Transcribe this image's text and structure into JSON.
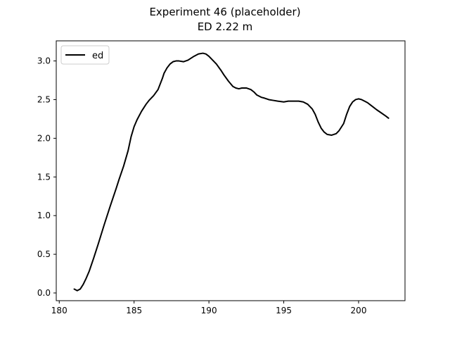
{
  "chart_data": {
    "type": "line",
    "title": "Experiment 46 (placeholder)",
    "subtitle": "ED 2.22 m",
    "xlabel": "",
    "ylabel": "",
    "xlim": [
      179.8,
      203.1
    ],
    "ylim": [
      -0.1,
      3.26
    ],
    "x_ticks": [
      180,
      185,
      190,
      195,
      200
    ],
    "y_ticks": [
      0.0,
      0.5,
      1.0,
      1.5,
      2.0,
      2.5,
      3.0
    ],
    "x_tick_labels": [
      "180",
      "185",
      "190",
      "195",
      "200"
    ],
    "y_tick_labels": [
      "0.0",
      "0.5",
      "1.0",
      "1.5",
      "2.0",
      "2.5",
      "3.0"
    ],
    "grid": false,
    "legend_position": "top-left",
    "series": [
      {
        "name": "ed",
        "color": "#000000",
        "x": [
          181.0,
          181.2,
          181.4,
          181.6,
          181.8,
          182.0,
          182.3,
          182.6,
          183.0,
          183.4,
          183.8,
          184.0,
          184.3,
          184.6,
          184.8,
          185.0,
          185.2,
          185.5,
          185.8,
          186.0,
          186.3,
          186.6,
          186.9,
          187.0,
          187.2,
          187.4,
          187.6,
          187.8,
          188.0,
          188.3,
          188.6,
          189.0,
          189.3,
          189.6,
          189.8,
          190.0,
          190.2,
          190.5,
          190.8,
          191.0,
          191.3,
          191.6,
          191.8,
          192.0,
          192.2,
          192.5,
          192.8,
          193.0,
          193.2,
          193.5,
          193.7,
          194.0,
          194.3,
          194.6,
          195.0,
          195.3,
          195.6,
          196.0,
          196.3,
          196.6,
          196.9,
          197.1,
          197.3,
          197.5,
          197.7,
          197.9,
          198.2,
          198.5,
          198.7,
          199.0,
          199.2,
          199.4,
          199.6,
          199.8,
          200.0,
          200.2,
          200.4,
          200.6,
          200.8,
          201.0,
          201.2,
          201.5,
          201.8,
          202.0
        ],
        "y": [
          0.05,
          0.03,
          0.05,
          0.11,
          0.19,
          0.28,
          0.45,
          0.63,
          0.88,
          1.12,
          1.35,
          1.47,
          1.64,
          1.84,
          2.02,
          2.15,
          2.24,
          2.35,
          2.44,
          2.49,
          2.55,
          2.63,
          2.78,
          2.84,
          2.91,
          2.96,
          2.99,
          3.0,
          3.0,
          2.99,
          3.01,
          3.06,
          3.09,
          3.1,
          3.09,
          3.06,
          3.02,
          2.96,
          2.88,
          2.82,
          2.74,
          2.67,
          2.65,
          2.64,
          2.65,
          2.65,
          2.63,
          2.6,
          2.56,
          2.53,
          2.52,
          2.5,
          2.49,
          2.48,
          2.47,
          2.48,
          2.48,
          2.48,
          2.47,
          2.44,
          2.38,
          2.31,
          2.21,
          2.13,
          2.08,
          2.05,
          2.04,
          2.06,
          2.1,
          2.19,
          2.31,
          2.41,
          2.47,
          2.5,
          2.51,
          2.5,
          2.48,
          2.46,
          2.43,
          2.4,
          2.37,
          2.33,
          2.29,
          2.26
        ]
      }
    ]
  }
}
